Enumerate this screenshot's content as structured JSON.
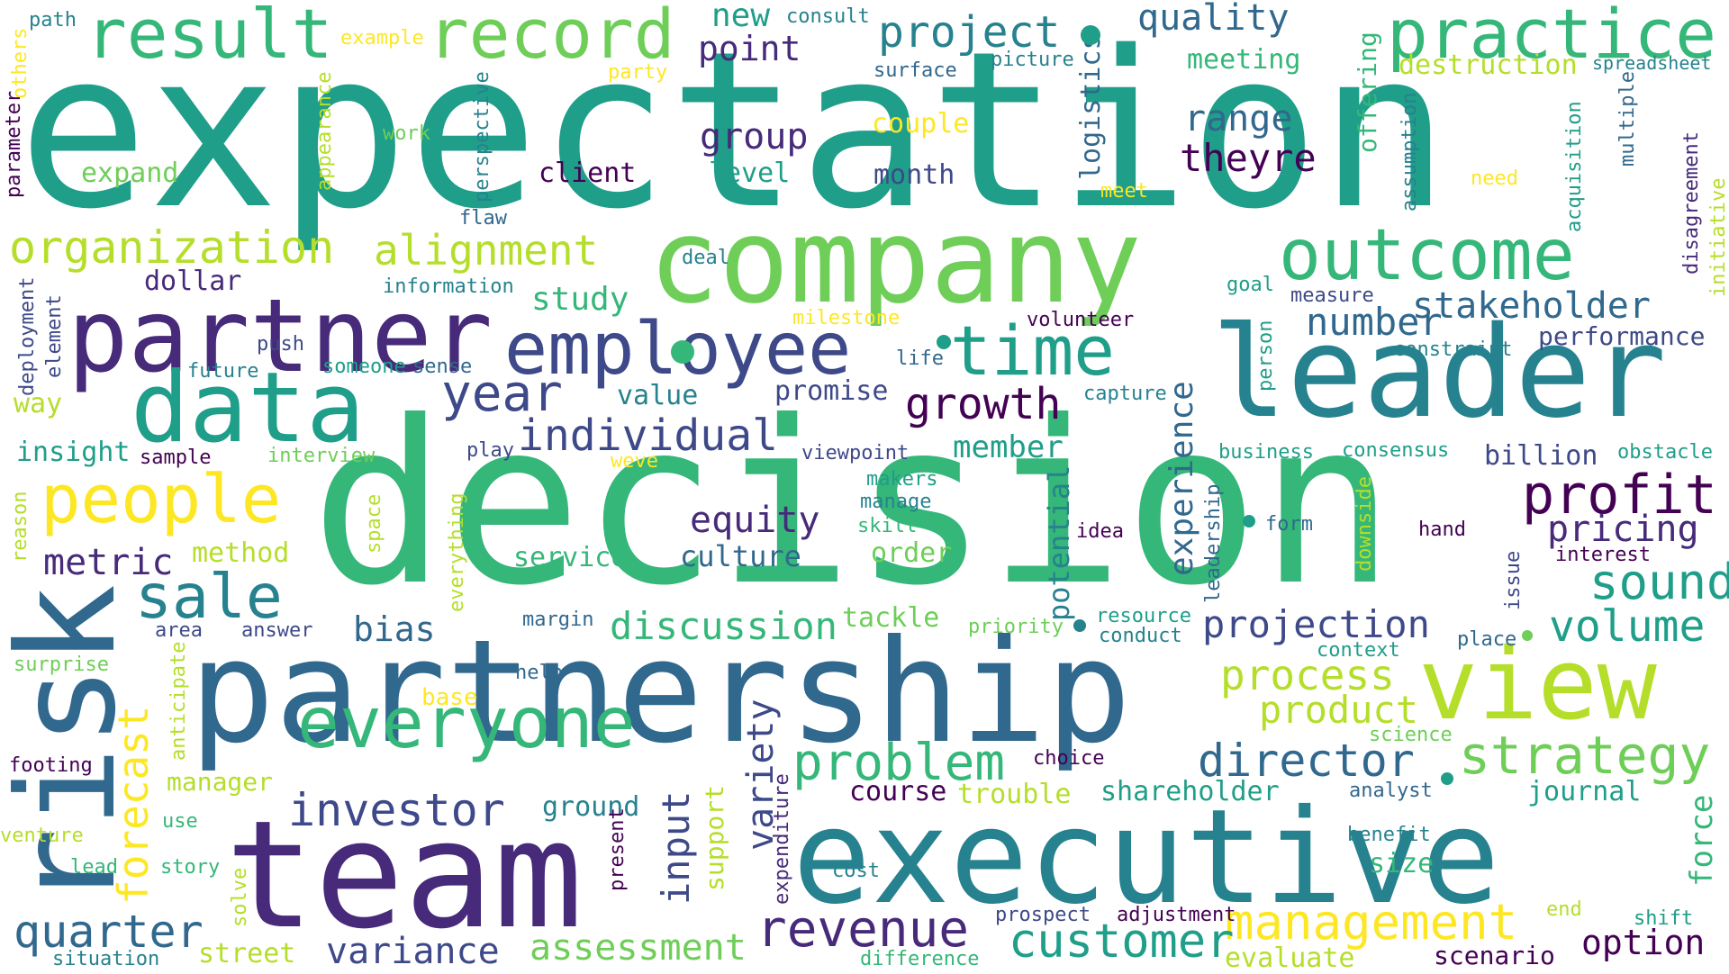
{
  "words": {
    "expectation": "expectation",
    "decision": "decision",
    "partnership": "partnership",
    "company": "company",
    "leader": "leader",
    "executive": "executive",
    "team": "team",
    "risk": "risk",
    "view": "view",
    "partner": "partner",
    "data": "data",
    "employee": "employee",
    "outcome": "outcome",
    "everyone": "everyone",
    "time": "time",
    "people": "people",
    "result": "result",
    "record": "record",
    "practice": "practice",
    "organization": "organization",
    "sale": "sale",
    "year": "year",
    "profit": "profit",
    "forecast": "forecast",
    "management": "management",
    "customer": "customer",
    "revenue": "revenue",
    "strategy": "strategy",
    "problem": "problem",
    "director": "director",
    "investor": "investor",
    "quarter": "quarter",
    "sound": "sound",
    "volume": "volume",
    "process": "process",
    "product": "product",
    "projection": "projection",
    "discussion": "discussion",
    "assessment": "assessment",
    "variance": "variance",
    "growth": "growth",
    "individual": "individual",
    "alignment": "alignment",
    "equity": "equity",
    "stakeholder": "stakeholder",
    "number": "number",
    "project": "project",
    "quality": "quality",
    "range": "range",
    "theyre": "theyre",
    "group": "group",
    "point": "point",
    "new": "new",
    "metric": "metric",
    "pricing": "pricing",
    "option": "option",
    "culture": "culture",
    "member": "member",
    "experience": "experience",
    "potential": "potential",
    "input": "input",
    "variety": "variety",
    "shareholder": "shareholder",
    "journal": "journal",
    "force": "force",
    "bias": "bias",
    "study": "study",
    "insight": "insight",
    "way": "way",
    "service": "service",
    "method": "method",
    "value": "value",
    "promise": "promise",
    "month": "month",
    "level": "level",
    "client": "client",
    "couple": "couple",
    "meeting": "meeting",
    "destruction": "destruction",
    "spreadsheet": "spreadsheet",
    "offering": "offering",
    "logistics": "logistics",
    "surface": "surface",
    "picture": "picture",
    "consult": "consult",
    "example": "example",
    "party": "party",
    "path": "path",
    "others": "others",
    "work": "work",
    "expand": "expand",
    "parameter": "parameter",
    "appearance": "appearance",
    "perspective": "perspective",
    "flaw": "flaw",
    "meet": "meet",
    "need": "need",
    "assumption": "assumption",
    "acquisition": "acquisition",
    "multiple": "multiple",
    "disagreement": "disagreement",
    "initiative": "initiative",
    "dollar": "dollar",
    "information": "information",
    "deal": "deal",
    "goal": "goal",
    "measure": "measure",
    "constraint": "constraint",
    "performance": "performance",
    "milestone": "milestone",
    "volunteer": "volunteer",
    "life": "life",
    "person": "person",
    "push": "push",
    "future": "future",
    "someone": "someone",
    "sense": "sense",
    "deployment": "deployment",
    "element": "element",
    "capture": "capture",
    "sample": "sample",
    "interview": "interview",
    "play": "play",
    "weve": "weve",
    "viewpoint": "viewpoint",
    "business": "business",
    "consensus": "consensus",
    "billion": "billion",
    "obstacle": "obstacle",
    "reason": "reason",
    "space": "space",
    "everything": "everything",
    "makers": "makers",
    "manage": "manage",
    "skill": "skill",
    "idea": "idea",
    "form": "form",
    "hand": "hand",
    "interest": "interest",
    "order": "order",
    "leadership": "leadership",
    "downside": "downside",
    "issue": "issue",
    "tackle": "tackle",
    "area": "area",
    "answer": "answer",
    "margin": "margin",
    "priority": "priority",
    "resource": "resource",
    "conduct": "conduct",
    "place": "place",
    "context": "context",
    "surprise": "surprise",
    "help": "help",
    "base": "base",
    "anticipate": "anticipate",
    "science": "science",
    "footing": "footing",
    "choice": "choice",
    "course": "course",
    "trouble": "trouble",
    "manager": "manager",
    "analyst": "analyst",
    "use": "use",
    "ground": "ground",
    "venture": "venture",
    "benefit": "benefit",
    "lead": "lead",
    "story": "story",
    "size": "size",
    "expenditure": "expenditure",
    "cost": "cost",
    "support": "support",
    "present": "present",
    "solve": "solve",
    "prospect": "prospect",
    "adjustment": "adjustment",
    "end": "end",
    "shift": "shift",
    "street": "street",
    "situation": "situation",
    "difference": "difference",
    "evaluate": "evaluate",
    "scenario": "scenario"
  },
  "colors": {
    "purple": "#440154",
    "indigo": "#472a7a",
    "blue_violet": "#3e4989",
    "steel": "#31688e",
    "teal_blue": "#26828e",
    "teal": "#1f9e89",
    "green": "#35b779",
    "light_green": "#6ece58",
    "lime": "#b5de2b",
    "yellow": "#fde725"
  }
}
